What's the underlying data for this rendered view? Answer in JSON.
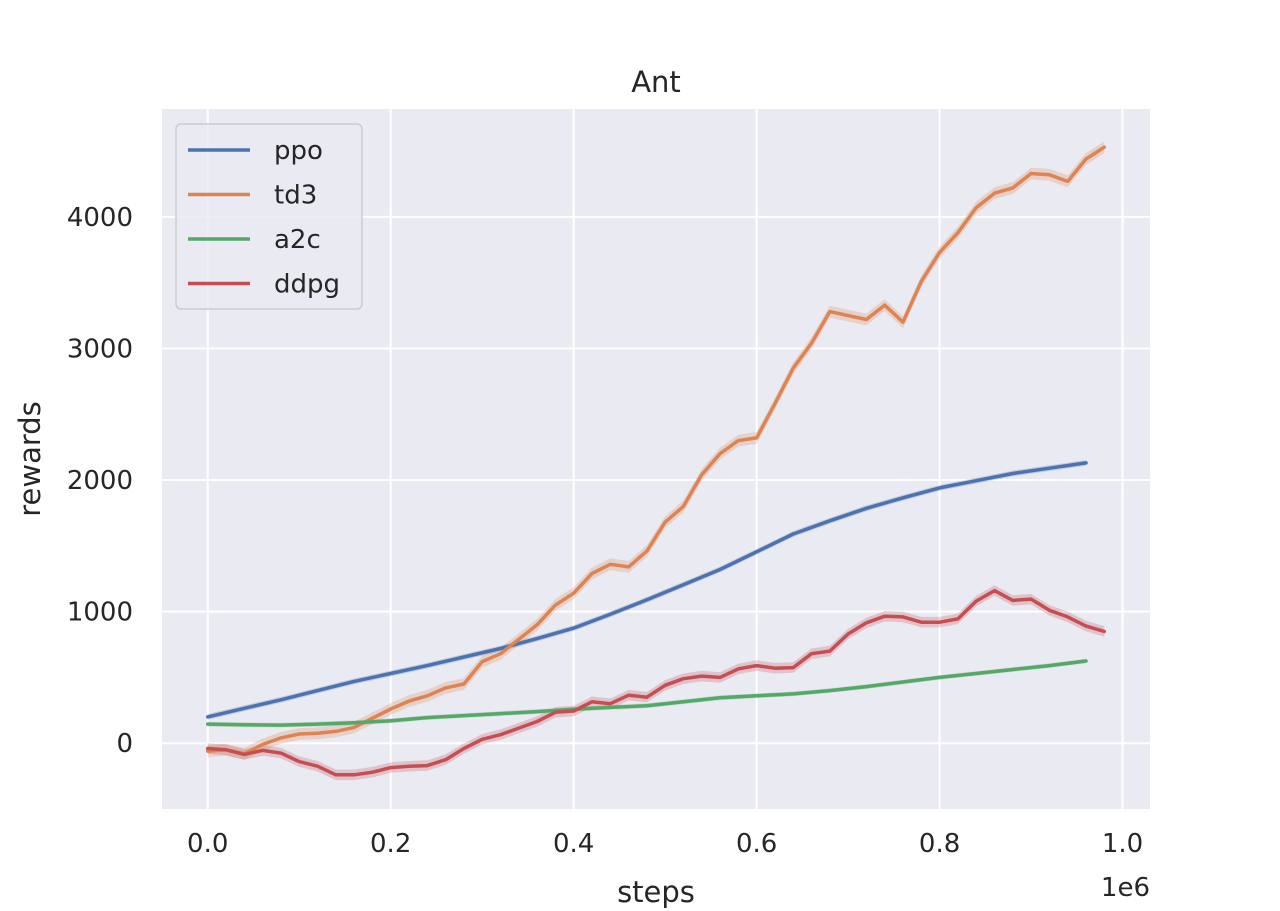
{
  "chart_data": {
    "type": "line",
    "title": "Ant",
    "xlabel": "steps",
    "ylabel": "rewards",
    "x_offset_text": "1e6",
    "xlim": [
      -0.05,
      1.03
    ],
    "ylim": [
      -500,
      4820
    ],
    "xticks": [
      0.0,
      0.2,
      0.4,
      0.6,
      0.8,
      1.0
    ],
    "xtick_labels": [
      "0.0",
      "0.2",
      "0.4",
      "0.6",
      "0.8",
      "1.0"
    ],
    "yticks": [
      0,
      1000,
      2000,
      3000,
      4000
    ],
    "ytick_labels": [
      "0",
      "1000",
      "2000",
      "3000",
      "4000"
    ],
    "grid": true,
    "legend_position": "top-left",
    "background_color": "#eaeaf2",
    "series": [
      {
        "name": "ppo",
        "color": "#4c72b0",
        "band": 22,
        "x": [
          0.0,
          0.04,
          0.08,
          0.12,
          0.16,
          0.2,
          0.24,
          0.28,
          0.32,
          0.36,
          0.4,
          0.44,
          0.48,
          0.52,
          0.56,
          0.6,
          0.64,
          0.68,
          0.72,
          0.76,
          0.8,
          0.84,
          0.88,
          0.92,
          0.96
        ],
        "y": [
          200,
          265,
          330,
          400,
          470,
          530,
          590,
          655,
          720,
          795,
          875,
          980,
          1090,
          1205,
          1320,
          1455,
          1590,
          1690,
          1785,
          1865,
          1940,
          1995,
          2050,
          2090,
          2130
        ]
      },
      {
        "name": "td3",
        "color": "#dd8452",
        "band": 45,
        "x": [
          0.0,
          0.02,
          0.04,
          0.06,
          0.08,
          0.1,
          0.12,
          0.14,
          0.16,
          0.18,
          0.2,
          0.22,
          0.24,
          0.26,
          0.28,
          0.3,
          0.32,
          0.34,
          0.36,
          0.38,
          0.4,
          0.42,
          0.44,
          0.46,
          0.48,
          0.5,
          0.52,
          0.54,
          0.56,
          0.58,
          0.6,
          0.62,
          0.64,
          0.66,
          0.68,
          0.7,
          0.72,
          0.74,
          0.76,
          0.78,
          0.8,
          0.82,
          0.84,
          0.86,
          0.88,
          0.9,
          0.92,
          0.94,
          0.96,
          0.98
        ],
        "y": [
          -60,
          -50,
          -80,
          -10,
          40,
          70,
          75,
          90,
          120,
          190,
          260,
          320,
          360,
          420,
          450,
          620,
          680,
          790,
          900,
          1050,
          1140,
          1290,
          1360,
          1340,
          1460,
          1680,
          1800,
          2040,
          2200,
          2300,
          2320,
          2580,
          2850,
          3040,
          3280,
          3250,
          3220,
          3330,
          3200,
          3510,
          3730,
          3880,
          4070,
          4180,
          4220,
          4330,
          4320,
          4270,
          4440,
          4530
        ]
      },
      {
        "name": "a2c",
        "color": "#55a868",
        "band": 18,
        "x": [
          0.0,
          0.04,
          0.08,
          0.12,
          0.16,
          0.2,
          0.24,
          0.28,
          0.32,
          0.36,
          0.4,
          0.44,
          0.48,
          0.52,
          0.56,
          0.6,
          0.64,
          0.68,
          0.72,
          0.76,
          0.8,
          0.84,
          0.88,
          0.92,
          0.96
        ],
        "y": [
          145,
          140,
          138,
          145,
          155,
          170,
          195,
          210,
          225,
          240,
          258,
          272,
          285,
          315,
          345,
          360,
          375,
          400,
          430,
          465,
          500,
          530,
          560,
          590,
          625
        ]
      },
      {
        "name": "ddpg",
        "color": "#c44e52",
        "band": 40,
        "x": [
          0.0,
          0.02,
          0.04,
          0.06,
          0.08,
          0.1,
          0.12,
          0.14,
          0.16,
          0.18,
          0.2,
          0.22,
          0.24,
          0.26,
          0.28,
          0.3,
          0.32,
          0.34,
          0.36,
          0.38,
          0.4,
          0.42,
          0.44,
          0.46,
          0.48,
          0.5,
          0.52,
          0.54,
          0.56,
          0.58,
          0.6,
          0.62,
          0.64,
          0.66,
          0.68,
          0.7,
          0.72,
          0.74,
          0.76,
          0.78,
          0.8,
          0.82,
          0.84,
          0.86,
          0.88,
          0.9,
          0.92,
          0.94,
          0.96,
          0.98
        ],
        "y": [
          -40,
          -50,
          -85,
          -55,
          -75,
          -140,
          -175,
          -240,
          -240,
          -220,
          -185,
          -175,
          -170,
          -125,
          -40,
          30,
          65,
          115,
          165,
          235,
          245,
          315,
          300,
          365,
          350,
          440,
          490,
          510,
          500,
          565,
          590,
          570,
          575,
          680,
          700,
          830,
          915,
          965,
          960,
          920,
          920,
          945,
          1080,
          1160,
          1085,
          1095,
          1010,
          960,
          890,
          850
        ]
      }
    ]
  }
}
